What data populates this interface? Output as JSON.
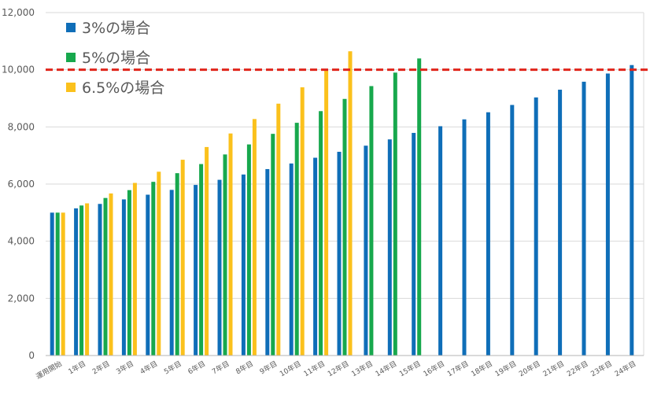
{
  "chart_data": {
    "type": "bar",
    "categories": [
      "運用開始",
      "1年目",
      "2年目",
      "3年目",
      "4年目",
      "5年目",
      "6年目",
      "7年目",
      "8年目",
      "9年目",
      "10年目",
      "11年目",
      "12年目",
      "13年目",
      "14年目",
      "15年目",
      "16年目",
      "17年目",
      "18年目",
      "19年目",
      "20年目",
      "21年目",
      "22年目",
      "23年目",
      "24年目"
    ],
    "series": [
      {
        "name": "3%の場合",
        "color": "#0f6eb8",
        "values": [
          5000,
          5150,
          5305,
          5464,
          5628,
          5796,
          5970,
          6149,
          6334,
          6524,
          6720,
          6921,
          7129,
          7343,
          7563,
          7790,
          8024,
          8264,
          8512,
          8768,
          9031,
          9302,
          9581,
          9868,
          10164
        ]
      },
      {
        "name": "5%の場合",
        "color": "#17a84d",
        "values": [
          5000,
          5250,
          5513,
          5788,
          6078,
          6381,
          6700,
          7036,
          7387,
          7757,
          8144,
          8552,
          8979,
          9428,
          9900,
          10395,
          null,
          null,
          null,
          null,
          null,
          null,
          null,
          null,
          null
        ]
      },
      {
        "name": "6.5%の場合",
        "color": "#fbc11c",
        "values": [
          5000,
          5325,
          5671,
          6040,
          6432,
          6851,
          7296,
          7770,
          8275,
          8813,
          9386,
          9996,
          10646,
          null,
          null,
          null,
          null,
          null,
          null,
          null,
          null,
          null,
          null,
          null,
          null
        ]
      }
    ],
    "ylim": [
      0,
      12000
    ],
    "yticks": [
      0,
      2000,
      4000,
      6000,
      8000,
      10000,
      12000
    ],
    "ytick_labels": [
      "0",
      "2,000",
      "4,000",
      "6,000",
      "8,000",
      "10,000",
      "12,000"
    ],
    "reference_line": {
      "value": 10000,
      "color": "#e0251b",
      "style": "dashed"
    },
    "legend_position": "top-left",
    "grid": true,
    "gridline_color": "#d9d9d9",
    "axis_color": "#b4b4b4",
    "label_color": "#595959"
  }
}
